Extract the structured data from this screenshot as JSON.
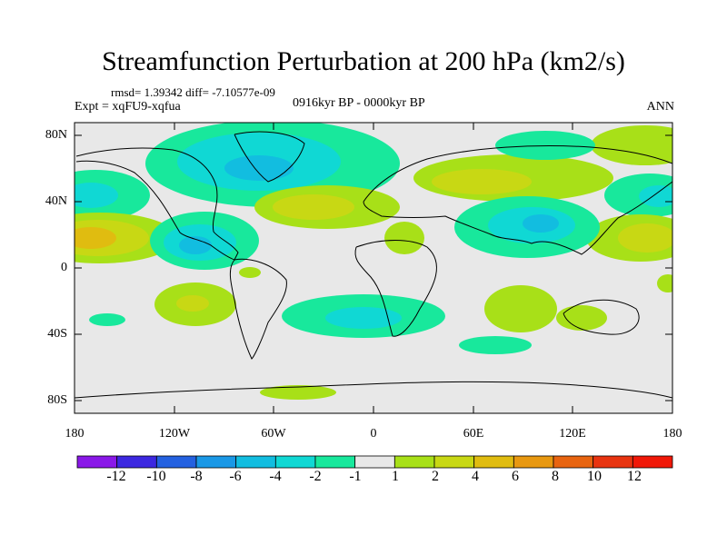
{
  "title": "Streamfunction Perturbation at 200 hPa (km2/s)",
  "stats_line": "rmsd= 1.39342  diff= -7.10577e-09",
  "experiment": "Expt = xqFU9-xqfua",
  "period": "0916kyr BP - 0000kyr BP",
  "season": "ANN",
  "lat_labels": [
    "80N",
    "40N",
    "0",
    "40S",
    "80S"
  ],
  "lon_labels": [
    "180",
    "120W",
    "60W",
    "0",
    "60E",
    "120E",
    "180"
  ],
  "colorbar": {
    "labels": [
      "-12",
      "-10",
      "-8",
      "-6",
      "-4",
      "-2",
      "-1",
      "1",
      "2",
      "4",
      "6",
      "8",
      "10",
      "12"
    ],
    "colors": [
      "#8a18e8",
      "#3c28e0",
      "#2461e0",
      "#1a98e6",
      "#12bde0",
      "#10d8d4",
      "#18e89c",
      "#e8e8e8",
      "#a8e018",
      "#c8d814",
      "#e0bc10",
      "#e89810",
      "#e86410",
      "#e83410",
      "#f01808"
    ]
  }
}
